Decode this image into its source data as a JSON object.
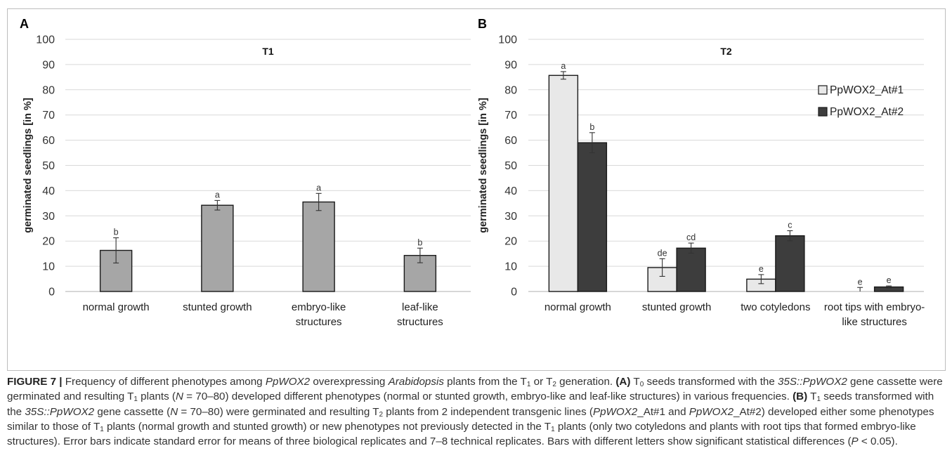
{
  "chart_data": [
    {
      "type": "bar",
      "panel_label": "A",
      "title": "T1",
      "ylabel": "germinated seedlings [in %]",
      "ylim": [
        0,
        100
      ],
      "yticks": [
        0,
        10,
        20,
        30,
        40,
        50,
        60,
        70,
        80,
        90,
        100
      ],
      "grid": true,
      "legend": "none",
      "categories": [
        [
          "normal growth"
        ],
        [
          "stunted growth"
        ],
        [
          "embryo-like",
          "structures"
        ],
        [
          "leaf-like",
          "structures"
        ]
      ],
      "series": [
        {
          "color": "#a6a6a6",
          "values": [
            16.3,
            34.2,
            35.5,
            14.3
          ],
          "errors": [
            5.0,
            1.9,
            3.4,
            2.9
          ],
          "letters": [
            "b",
            "a",
            "a",
            "b"
          ]
        }
      ]
    },
    {
      "type": "bar",
      "panel_label": "B",
      "title": "T2",
      "ylabel": "germinated seedlings [in %]",
      "ylim": [
        0,
        100
      ],
      "yticks": [
        0,
        10,
        20,
        30,
        40,
        50,
        60,
        70,
        80,
        90,
        100
      ],
      "grid": true,
      "legend": "top-right",
      "categories": [
        [
          "normal growth"
        ],
        [
          "stunted growth"
        ],
        [
          "two cotyledons"
        ],
        [
          "root tips with embryo-",
          "like structures"
        ]
      ],
      "series": [
        {
          "name": "PpWOX2_At#1",
          "color": "#e8e8e8",
          "values": [
            85.7,
            9.5,
            4.9,
            0
          ],
          "errors": [
            1.5,
            3.5,
            1.8,
            1.6
          ],
          "letters": [
            "a",
            "de",
            "e",
            "e"
          ]
        },
        {
          "name": "PpWOX2_At#2",
          "color": "#3d3d3d",
          "values": [
            59.0,
            17.2,
            22.1,
            1.8
          ],
          "errors": [
            4.0,
            2.0,
            2.0,
            0.4
          ],
          "letters": [
            "b",
            "cd",
            "c",
            "e"
          ]
        }
      ]
    }
  ],
  "caption": [
    {
      "t": "FIGURE 7 | ",
      "b": true
    },
    {
      "t": "Frequency of different phenotypes among "
    },
    {
      "t": "PpWOX2",
      "i": true
    },
    {
      "t": " overexpressing "
    },
    {
      "t": "Arabidopsis",
      "i": true
    },
    {
      "t": " plants from the T"
    },
    {
      "t": "1",
      "sub": true
    },
    {
      "t": " or T"
    },
    {
      "t": "2",
      "sub": true
    },
    {
      "t": " generation. "
    },
    {
      "t": "(A)",
      "b": true
    },
    {
      "t": " T"
    },
    {
      "t": "0",
      "sub": true
    },
    {
      "t": " seeds transformed with the "
    },
    {
      "t": "35S::PpWOX2",
      "i": true
    },
    {
      "t": " gene cassette were germinated and resulting T"
    },
    {
      "t": "1",
      "sub": true
    },
    {
      "t": " plants ("
    },
    {
      "t": "N",
      "i": true
    },
    {
      "t": " = 70–80) developed different phenotypes (normal or stunted growth, embryo-like and leaf-like structures) in various frequencies. "
    },
    {
      "t": "(B)",
      "b": true
    },
    {
      "t": " T"
    },
    {
      "t": "1",
      "sub": true
    },
    {
      "t": " seeds transformed with the "
    },
    {
      "t": "35S::PpWOX2",
      "i": true
    },
    {
      "t": " gene cassette ("
    },
    {
      "t": "N",
      "i": true
    },
    {
      "t": " = 70–80) were germinated and resulting T"
    },
    {
      "t": "2",
      "sub": true
    },
    {
      "t": " plants from 2 independent transgenic lines ("
    },
    {
      "t": "PpWOX2",
      "i": true
    },
    {
      "t": "_At#1 and "
    },
    {
      "t": "PpWOX2",
      "i": true
    },
    {
      "t": "_At#2) developed either some phenotypes similar to those of T"
    },
    {
      "t": "1",
      "sub": true
    },
    {
      "t": " plants (normal growth and stunted growth) or new phenotypes not previously detected in the T"
    },
    {
      "t": "1",
      "sub": true
    },
    {
      "t": " plants (only two cotyledons and plants with root tips that formed embryo-like structures). Error bars indicate standard error for means of three biological replicates and 7–8 technical replicates. Bars with different letters show significant statistical differences ("
    },
    {
      "t": "P",
      "i": true
    },
    {
      "t": " < 0.05)."
    }
  ]
}
